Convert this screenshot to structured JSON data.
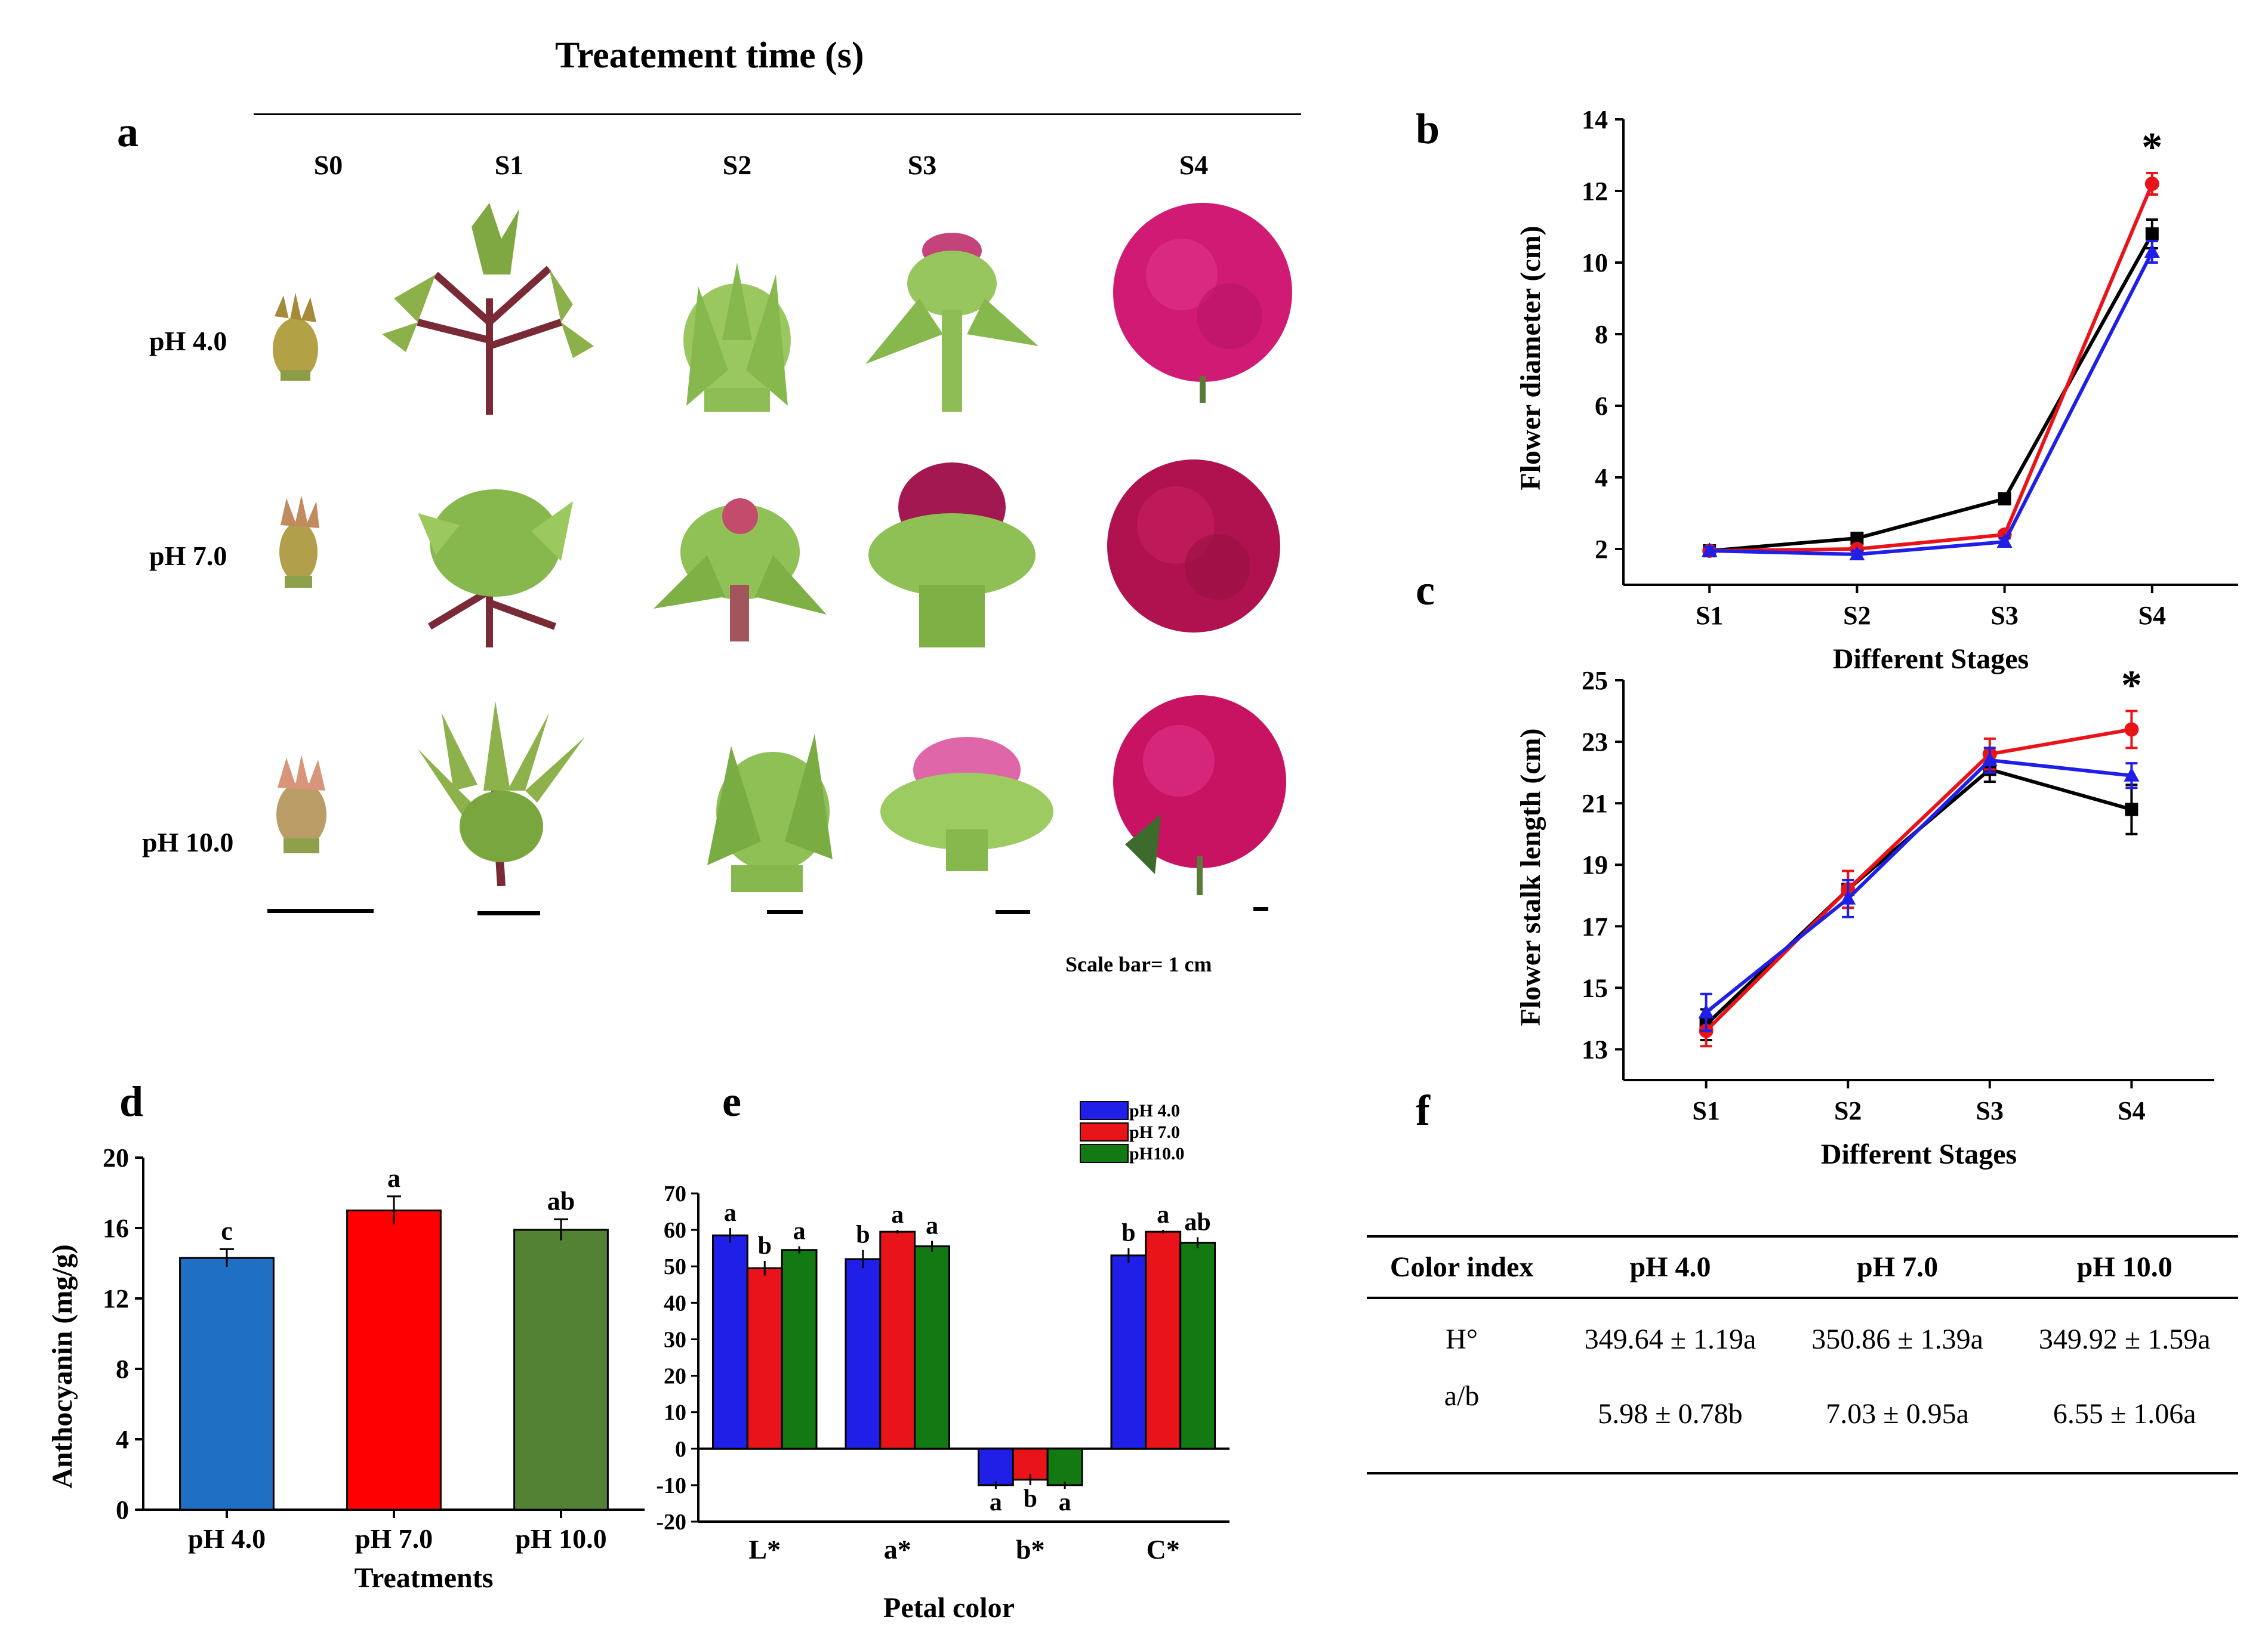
{
  "figure": {
    "panel_a": {
      "letter": "a",
      "header": "Treatement time (s)",
      "stages": [
        "S0",
        "S1",
        "S2",
        "S3",
        "S4"
      ],
      "rows": [
        "pH 4.0",
        "pH 7.0",
        "pH 10.0"
      ],
      "scale_note": "Scale bar= 1 cm"
    },
    "colors": {
      "ph4": "#1f1fe8",
      "ph7": "#e8141a",
      "ph10": "#137a13",
      "black": "#000000",
      "bar_blue": "#1f6fc4",
      "bar_red": "#ff0000",
      "bar_green": "#548235"
    },
    "panel_letters": {
      "b": "b",
      "c": "c",
      "d": "d",
      "e": "e",
      "f": "f"
    }
  },
  "chart_data": [
    {
      "id": "b",
      "type": "line",
      "xlabel": "Different Stages",
      "ylabel": "Flower diameter (cm)",
      "categories": [
        "S1",
        "S2",
        "S3",
        "S4"
      ],
      "ylim": [
        1,
        14
      ],
      "yticks": [
        2,
        4,
        6,
        8,
        10,
        12,
        14
      ],
      "series": [
        {
          "color": "#000000",
          "values": [
            1.95,
            2.3,
            3.4,
            10.8
          ],
          "err": [
            0.1,
            0.1,
            0.1,
            0.4
          ],
          "marker": "square"
        },
        {
          "color": "#e8141a",
          "values": [
            1.95,
            2.0,
            2.4,
            12.2
          ],
          "err": [
            0.1,
            0.1,
            0.1,
            0.3
          ],
          "marker": "circle"
        },
        {
          "color": "#1f1fe8",
          "values": [
            1.95,
            1.85,
            2.2,
            10.3
          ],
          "err": [
            0.1,
            0.1,
            0.1,
            0.3
          ],
          "marker": "triangle"
        }
      ],
      "annotations": [
        {
          "x": "S4",
          "text": "*"
        }
      ]
    },
    {
      "id": "c",
      "type": "line",
      "xlabel": "Different Stages",
      "ylabel": "Flower stalk length (cm)",
      "categories": [
        "S1",
        "S2",
        "S3",
        "S4"
      ],
      "ylim": [
        12,
        25
      ],
      "yticks": [
        13,
        15,
        17,
        19,
        21,
        23,
        25
      ],
      "series": [
        {
          "color": "#000000",
          "values": [
            13.8,
            18.2,
            22.1,
            20.8
          ],
          "err": [
            0.5,
            0.6,
            0.4,
            0.8
          ],
          "marker": "square"
        },
        {
          "color": "#e8141a",
          "values": [
            13.6,
            18.2,
            22.6,
            23.4
          ],
          "err": [
            0.5,
            0.6,
            0.5,
            0.6
          ],
          "marker": "circle"
        },
        {
          "color": "#1f1fe8",
          "values": [
            14.2,
            17.9,
            22.4,
            21.9
          ],
          "err": [
            0.6,
            0.6,
            0.4,
            0.4
          ],
          "marker": "triangle"
        }
      ],
      "annotations": [
        {
          "x": "S4",
          "text": "*"
        }
      ]
    },
    {
      "id": "d",
      "type": "bar",
      "xlabel": "Treatments",
      "ylabel": "Anthocyanin (mg/g)",
      "categories": [
        "pH 4.0",
        "pH 7.0",
        "pH 10.0"
      ],
      "values": [
        14.3,
        17.0,
        15.9
      ],
      "err": [
        0.5,
        0.8,
        0.6
      ],
      "letters": [
        "c",
        "a",
        "ab"
      ],
      "colors": [
        "#1f6fc4",
        "#ff0000",
        "#548235"
      ],
      "ylim": [
        0,
        20
      ],
      "yticks": [
        0,
        4,
        8,
        12,
        16,
        20
      ]
    },
    {
      "id": "e",
      "type": "bar",
      "xlabel": "Petal color",
      "ylabel": "",
      "categories": [
        "L*",
        "a*",
        "b*",
        "C*"
      ],
      "ylim": [
        -20,
        70
      ],
      "yticks": [
        -20,
        -10,
        0,
        10,
        20,
        30,
        40,
        50,
        60,
        70
      ],
      "legend_position": "top-right",
      "series": [
        {
          "name": "pH 4.0",
          "color": "#1f1fe8",
          "values": [
            58.5,
            52,
            -10,
            53
          ],
          "err": [
            2,
            2.5,
            1,
            2
          ],
          "letters": [
            "a",
            "b",
            "a",
            "b"
          ]
        },
        {
          "name": "pH 7.0",
          "color": "#e8141a",
          "values": [
            49.5,
            59.5,
            -8.5,
            59.5
          ],
          "err": [
            2,
            0.5,
            1.5,
            0.5
          ],
          "letters": [
            "b",
            "a",
            "b",
            "a"
          ]
        },
        {
          "name": "pH10.0",
          "color": "#137a13",
          "values": [
            54.5,
            55.5,
            -10,
            56.5
          ],
          "err": [
            1,
            1.5,
            1,
            1.5
          ],
          "letters": [
            "a",
            "a",
            "a",
            "ab"
          ]
        }
      ]
    },
    {
      "id": "f",
      "type": "table",
      "columns": [
        "Color index",
        "pH 4.0",
        "pH 7.0",
        "pH 10.0"
      ],
      "rows": [
        [
          "H°",
          "349.64 ± 1.19a",
          "350.86 ± 1.39a",
          "349.92 ± 1.59a"
        ],
        [
          "a/b",
          "5.98 ± 0.78b",
          "7.03 ± 0.95a",
          "6.55 ± 1.06a"
        ]
      ]
    }
  ]
}
